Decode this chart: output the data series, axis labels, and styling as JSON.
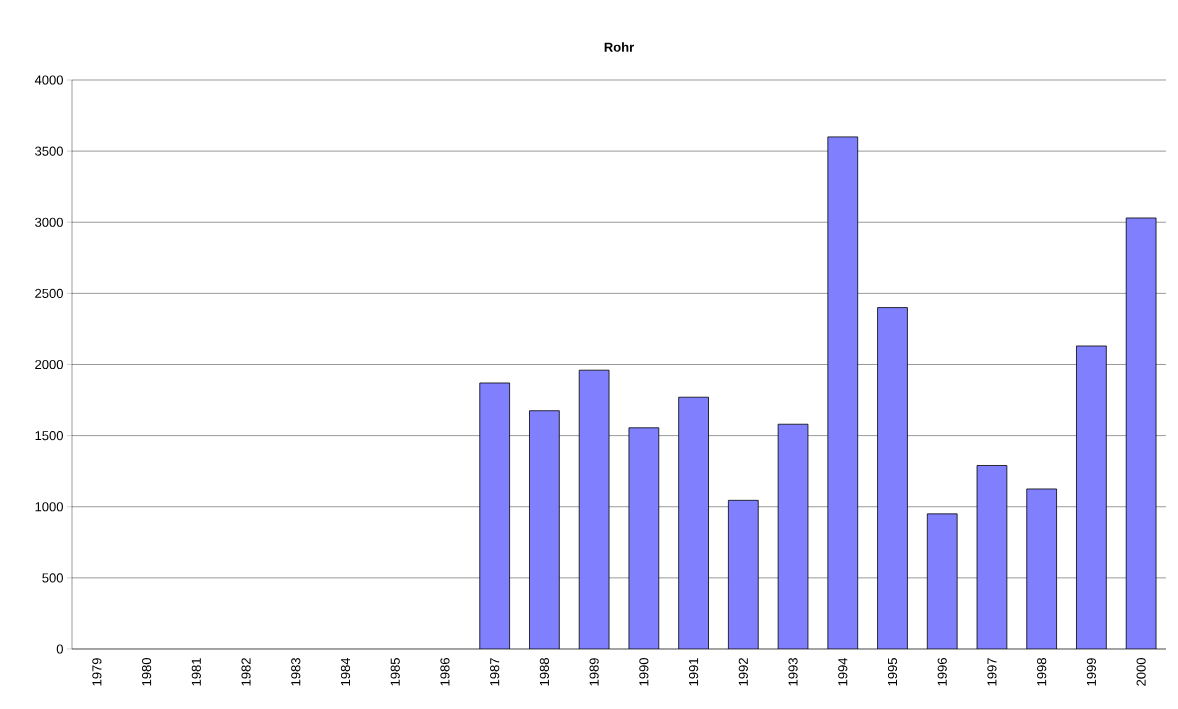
{
  "chart_data": {
    "type": "bar",
    "title": "Rohr",
    "categories": [
      "1979",
      "1980",
      "1981",
      "1982",
      "1983",
      "1984",
      "1985",
      "1986",
      "1987",
      "1988",
      "1989",
      "1990",
      "1991",
      "1992",
      "1993",
      "1994",
      "1995",
      "1996",
      "1997",
      "1998",
      "1999",
      "2000"
    ],
    "values": [
      null,
      null,
      null,
      null,
      null,
      null,
      null,
      null,
      1870,
      1675,
      1960,
      1555,
      1770,
      1045,
      1580,
      3600,
      2400,
      950,
      1290,
      1125,
      2130,
      3030
    ],
    "color": "#8080ff",
    "ylim": [
      0,
      4000
    ],
    "yticks": [
      0,
      500,
      1000,
      1500,
      2000,
      2500,
      3000,
      3500,
      4000
    ],
    "grid": "y"
  }
}
